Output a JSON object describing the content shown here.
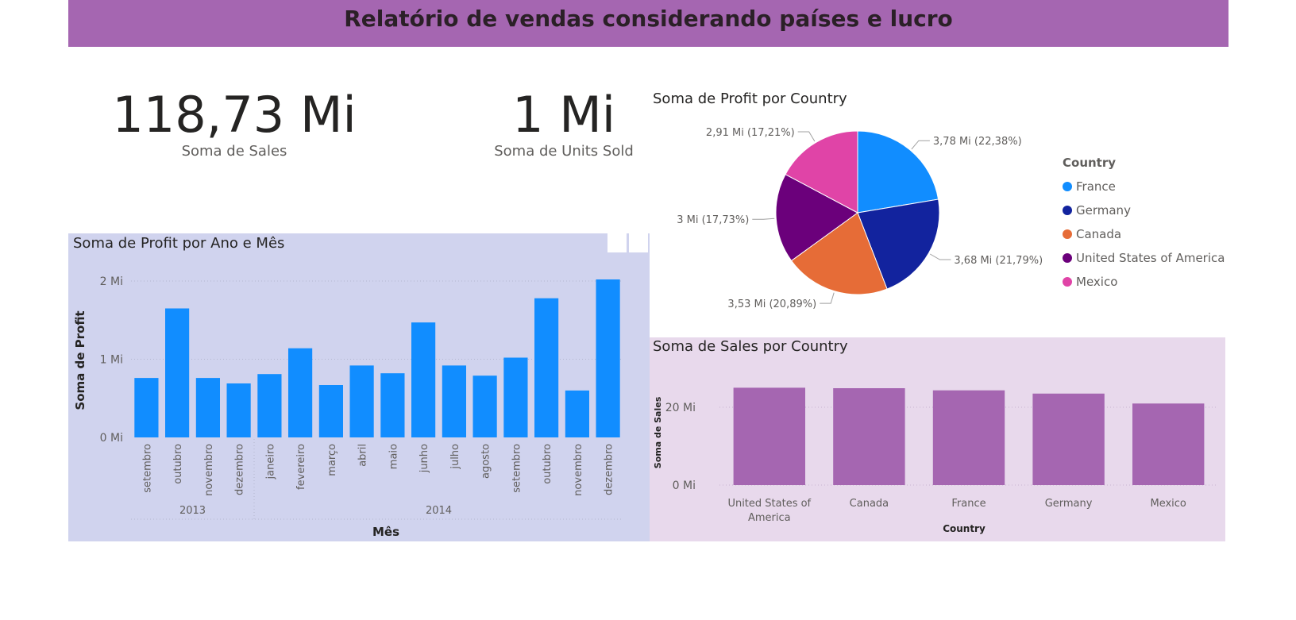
{
  "report": {
    "title": "Relatório de vendas considerando países e lucro"
  },
  "colors": {
    "banner": "#a566b1",
    "profit_bar": "#118dff",
    "sales_bar": "#a566b1",
    "month_panel_bg": "#d0d3ee",
    "country_panel_bg": "#e8d9ec"
  },
  "kpis": [
    {
      "value": "118,73 Mi",
      "label": "Soma de  Sales"
    },
    {
      "value": "1 Mi",
      "label": "Soma de Units Sold"
    }
  ],
  "pie": {
    "title": "Soma de Profit por Country",
    "legend_title": "Country",
    "chart_data": {
      "type": "pie",
      "title": "Soma de Profit por Country",
      "slices": [
        {
          "name": "France",
          "value": 3.78,
          "percent": 22.38,
          "label": "3,78 Mi (22,38%)",
          "color": "#118dff"
        },
        {
          "name": "Germany",
          "value": 3.68,
          "percent": 21.79,
          "label": "3,68 Mi (21,79%)",
          "color": "#12239e"
        },
        {
          "name": "Canada",
          "value": 3.53,
          "percent": 20.89,
          "label": "3,53 Mi (20,89%)",
          "color": "#e66c37"
        },
        {
          "name": "United States of America",
          "value": 3.0,
          "percent": 17.73,
          "label": "3 Mi (17,73%)",
          "color": "#6b007b"
        },
        {
          "name": "Mexico",
          "value": 2.91,
          "percent": 17.21,
          "label": "2,91 Mi (17,21%)",
          "color": "#e044a7"
        }
      ]
    }
  },
  "month_chart": {
    "title": "Soma de Profit por Ano e Mês",
    "chart_data": {
      "type": "bar",
      "title": "Soma de Profit por Ano e Mês",
      "xlabel": "Mês",
      "ylabel": "Soma de Profit",
      "yticks": [
        "0 Mi",
        "1 Mi",
        "2 Mi"
      ],
      "ylim": [
        0,
        2
      ],
      "categories": [
        "setembro",
        "outubro",
        "novembro",
        "dezembro",
        "janeiro",
        "fevereiro",
        "março",
        "abril",
        "maio",
        "junho",
        "julho",
        "agosto",
        "setembro",
        "outubro",
        "novembro",
        "dezembro"
      ],
      "values": [
        0.76,
        1.65,
        0.76,
        0.69,
        0.81,
        1.14,
        0.67,
        0.92,
        0.82,
        1.47,
        0.92,
        0.79,
        1.02,
        1.78,
        0.6,
        2.02
      ],
      "groups": [
        {
          "label": "2013",
          "count": 4
        },
        {
          "label": "2014",
          "count": 12
        }
      ]
    }
  },
  "country_chart": {
    "title": "Soma de Sales por Country",
    "chart_data": {
      "type": "bar",
      "title": "Soma de Sales por Country",
      "xlabel": "Country",
      "ylabel": "Soma de Sales",
      "yticks": [
        "0 Mi",
        "20 Mi"
      ],
      "ytick_values": [
        0,
        20
      ],
      "ylim": [
        0,
        30
      ],
      "categories": [
        "United States of America",
        "Canada",
        "France",
        "Germany",
        "Mexico"
      ],
      "category_lines": [
        [
          "United States of",
          "America"
        ],
        [
          "Canada"
        ],
        [
          "France"
        ],
        [
          "Germany"
        ],
        [
          "Mexico"
        ]
      ],
      "values": [
        25.03,
        24.89,
        24.35,
        23.51,
        20.95
      ]
    }
  }
}
